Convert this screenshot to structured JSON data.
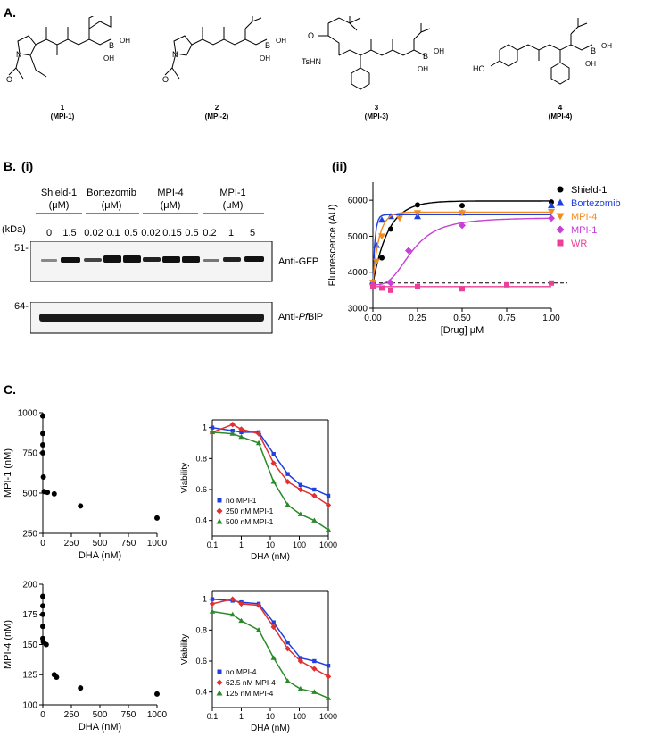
{
  "panel_a": {
    "letter": "A.",
    "compounds": [
      {
        "num": "1",
        "code": "(MPI-1)"
      },
      {
        "num": "2",
        "code": "(MPI-2)"
      },
      {
        "num": "3",
        "code": "(MPI-3)"
      },
      {
        "num": "4",
        "code": "(MPI-4)"
      }
    ],
    "atom_labels": {
      "n": "N",
      "h": "H",
      "o": "O",
      "b": "B",
      "oh": "OH",
      "tshn": "TsHN",
      "ho": "HO"
    }
  },
  "panel_b": {
    "letter": "B.",
    "sub_i": "(i)",
    "sub_ii": "(ii)",
    "blot": {
      "kda": "(kDa)",
      "marker_51": "51-",
      "marker_64": "64-",
      "groups": [
        {
          "name": "Shield-1",
          "unit": "(μM)",
          "lanes": [
            "0",
            "1.5"
          ]
        },
        {
          "name": "Bortezomib",
          "unit": "(μM)",
          "lanes": [
            "0.02",
            "0.1",
            "0.5"
          ]
        },
        {
          "name": "MPI-4",
          "unit": "(μM)",
          "lanes": [
            "0.02",
            "0.15",
            "0.5"
          ]
        },
        {
          "name": "MPI-1",
          "unit": "(μM)",
          "lanes": [
            "0.2",
            "1",
            "5"
          ]
        }
      ],
      "labels": {
        "gfp": "Anti-GFP",
        "bip_prefix": "Anti-",
        "bip_italic": "Pf",
        "bip_suffix": "BiP"
      }
    }
  },
  "panel_c": {
    "letter": "C."
  },
  "chart_data": [
    {
      "type": "scatter",
      "id": "B-ii",
      "xlabel": "[Drug] μM",
      "ylabel": "Fluorescence (AU)",
      "xlim": [
        0,
        1.0
      ],
      "ylim": [
        3000,
        6500
      ],
      "xticks": [
        "0.00",
        "0.25",
        "0.50",
        "0.75",
        "1.00"
      ],
      "yticks": [
        "3000",
        "4000",
        "5000",
        "6000"
      ],
      "baseline": 3700,
      "legend_position": "right",
      "series": [
        {
          "name": "Shield-1",
          "color": "#000000",
          "marker": "circle",
          "x": [
            0,
            0.05,
            0.1,
            0.25,
            0.5,
            1.0
          ],
          "y": [
            3680,
            4400,
            5200,
            5870,
            5850,
            5950
          ]
        },
        {
          "name": "Bortezomib",
          "color": "#1f3fe0",
          "marker": "triangle-up",
          "x": [
            0,
            0.02,
            0.05,
            0.1,
            0.25,
            0.5,
            1.0
          ],
          "y": [
            3750,
            4750,
            5450,
            5550,
            5550,
            5650,
            5850
          ]
        },
        {
          "name": "MPI-4",
          "color": "#f28c1e",
          "marker": "triangle-down",
          "x": [
            0,
            0.02,
            0.05,
            0.15,
            0.25,
            0.5,
            1.0
          ],
          "y": [
            3720,
            4300,
            5000,
            5500,
            5650,
            5650,
            5680
          ]
        },
        {
          "name": "MPI-1",
          "color": "#c63fd6",
          "marker": "diamond",
          "x": [
            0,
            0.1,
            0.2,
            0.5,
            1.0
          ],
          "y": [
            3650,
            3700,
            4600,
            5300,
            5500
          ]
        },
        {
          "name": "WR",
          "color": "#ec3f9a",
          "marker": "square",
          "x": [
            0,
            0.05,
            0.1,
            0.25,
            0.5,
            0.75,
            1.0
          ],
          "y": [
            3600,
            3560,
            3500,
            3600,
            3540,
            3650,
            3700
          ]
        }
      ]
    },
    {
      "type": "scatter",
      "id": "C-isobologram-MPI-1",
      "xlabel": "DHA (nM)",
      "ylabel": "MPI-1 (nM)",
      "xlim": [
        0,
        1000
      ],
      "ylim": [
        250,
        1000
      ],
      "xticks": [
        "0",
        "250",
        "500",
        "750",
        "1000"
      ],
      "yticks": [
        "250",
        "500",
        "750",
        "1000"
      ],
      "x": [
        0,
        0,
        0,
        0,
        5,
        12,
        40,
        100,
        330,
        1000
      ],
      "y": [
        980,
        870,
        800,
        750,
        600,
        510,
        505,
        495,
        420,
        345
      ]
    },
    {
      "type": "line",
      "id": "C-viability-MPI-1",
      "xlabel": "DHA (nM)",
      "ylabel": "Viability",
      "xscale": "log",
      "xlim": [
        0.1,
        1000
      ],
      "ylim": [
        0.3,
        1.05
      ],
      "xticks": [
        "0.1",
        "1",
        "10",
        "100",
        "1000"
      ],
      "yticks": [
        "0.4",
        "0.6",
        "0.8",
        "1"
      ],
      "legend_position": "bottom-left",
      "series": [
        {
          "name": "no MPI-1",
          "color": "#1f3fe0",
          "marker": "square",
          "x": [
            0.1,
            0.5,
            1,
            4,
            13,
            40,
            110,
            330,
            1000
          ],
          "y": [
            1.0,
            0.98,
            0.97,
            0.97,
            0.83,
            0.7,
            0.63,
            0.6,
            0.56
          ]
        },
        {
          "name": "250 nM MPI-1",
          "color": "#e03030",
          "marker": "diamond",
          "x": [
            0.1,
            0.5,
            1,
            4,
            13,
            40,
            110,
            330,
            1000
          ],
          "y": [
            0.97,
            1.02,
            0.99,
            0.96,
            0.77,
            0.65,
            0.6,
            0.56,
            0.5
          ]
        },
        {
          "name": "500 nM MPI-1",
          "color": "#2a8a2a",
          "marker": "triangle-up",
          "x": [
            0.1,
            0.5,
            1,
            4,
            13,
            40,
            110,
            330,
            1000
          ],
          "y": [
            0.97,
            0.96,
            0.94,
            0.9,
            0.65,
            0.5,
            0.44,
            0.4,
            0.34
          ]
        }
      ]
    },
    {
      "type": "scatter",
      "id": "C-isobologram-MPI-4",
      "xlabel": "DHA (nM)",
      "ylabel": "MPI-4 (nM)",
      "xlim": [
        0,
        1000
      ],
      "ylim": [
        100,
        200
      ],
      "xticks": [
        "0",
        "250",
        "500",
        "750",
        "1000"
      ],
      "yticks": [
        "100",
        "125",
        "150",
        "175",
        "200"
      ],
      "x": [
        0,
        0,
        0,
        0,
        0,
        5,
        30,
        100,
        120,
        330,
        1000
      ],
      "y": [
        190,
        182,
        175,
        165,
        155,
        152,
        150,
        125,
        123,
        114,
        109
      ]
    },
    {
      "type": "line",
      "id": "C-viability-MPI-4",
      "xlabel": "DHA (nM)",
      "ylabel": "Viability",
      "xscale": "log",
      "xlim": [
        0.1,
        1000
      ],
      "ylim": [
        0.3,
        1.05
      ],
      "xticks": [
        "0.1",
        "1",
        "10",
        "100",
        "1000"
      ],
      "yticks": [
        "0.4",
        "0.6",
        "0.8",
        "1"
      ],
      "legend_position": "bottom-left",
      "series": [
        {
          "name": "no MPI-4",
          "color": "#1f3fe0",
          "marker": "square",
          "x": [
            0.1,
            0.5,
            1,
            4,
            13,
            40,
            110,
            330,
            1000
          ],
          "y": [
            1.0,
            0.99,
            0.98,
            0.97,
            0.85,
            0.72,
            0.62,
            0.6,
            0.57
          ]
        },
        {
          "name": "62.5 nM MPI-4",
          "color": "#e03030",
          "marker": "diamond",
          "x": [
            0.1,
            0.5,
            1,
            4,
            13,
            40,
            110,
            330,
            1000
          ],
          "y": [
            0.97,
            1.0,
            0.97,
            0.96,
            0.82,
            0.68,
            0.6,
            0.55,
            0.5
          ]
        },
        {
          "name": "125 nM MPI-4",
          "color": "#2a8a2a",
          "marker": "triangle-up",
          "x": [
            0.1,
            0.5,
            1,
            4,
            13,
            40,
            110,
            330,
            1000
          ],
          "y": [
            0.92,
            0.9,
            0.86,
            0.8,
            0.62,
            0.47,
            0.42,
            0.4,
            0.36
          ]
        }
      ]
    }
  ]
}
